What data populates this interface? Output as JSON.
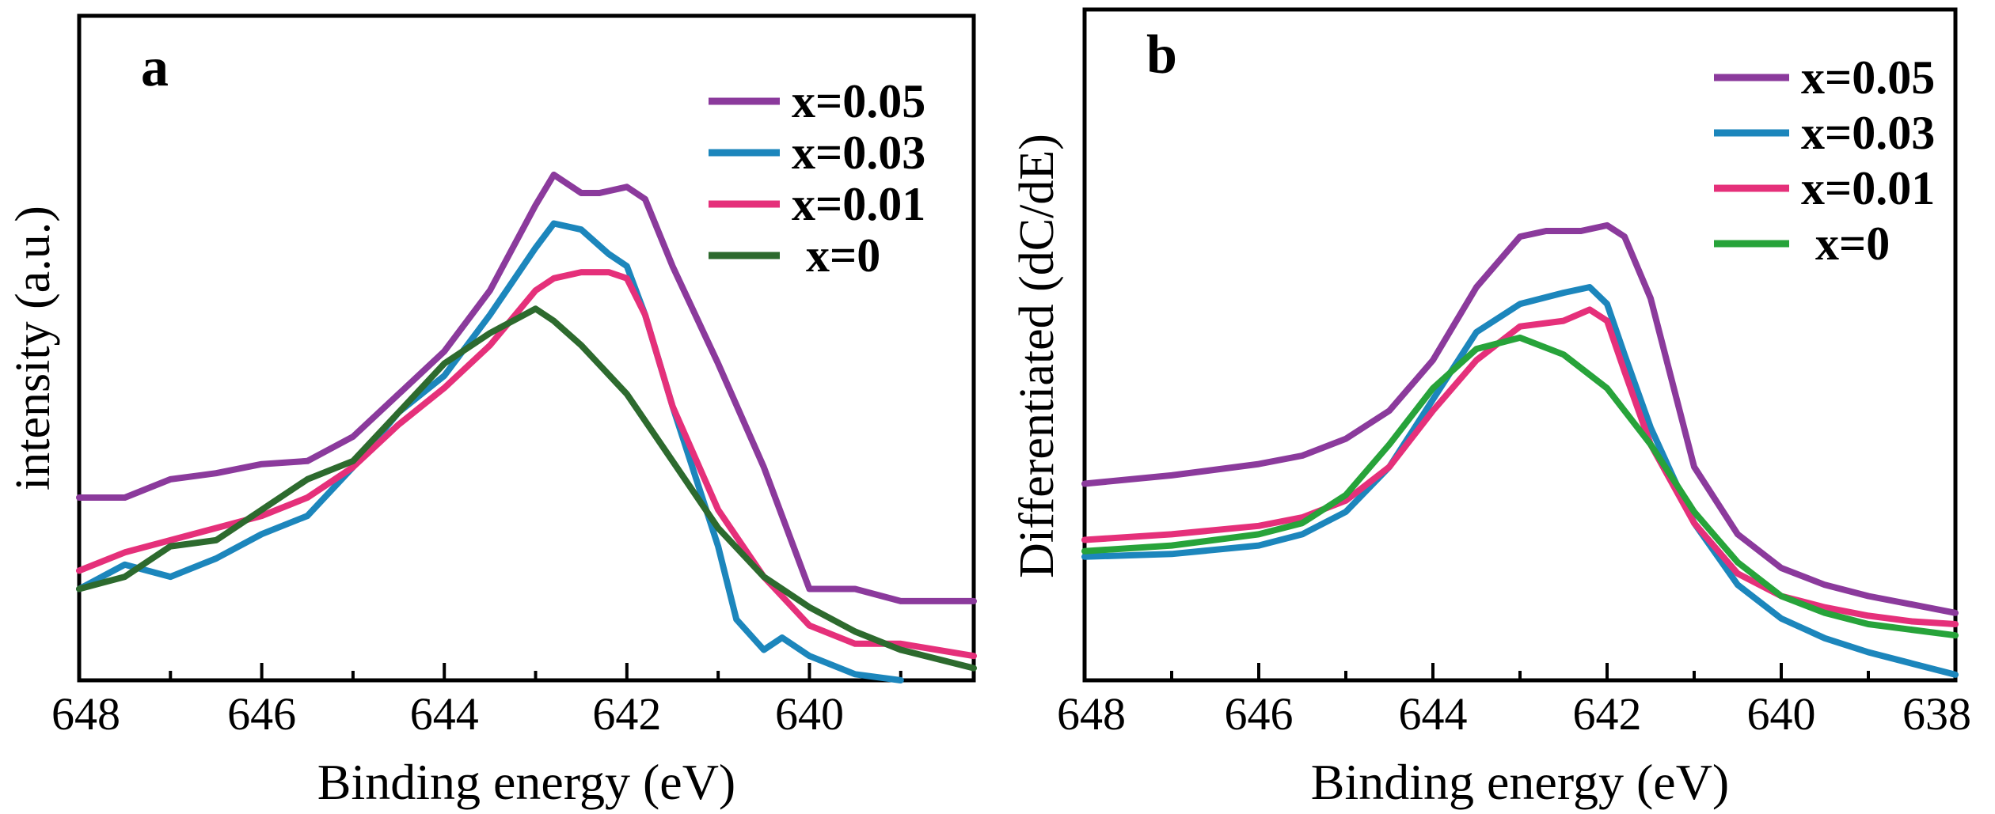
{
  "chart_data": [
    {
      "type": "line",
      "panel_label": "a",
      "xlabel": "Binding energy (eV)",
      "ylabel": "intensity (a.u.)",
      "xlim": [
        648,
        638.2
      ],
      "ylim": [
        0,
        100
      ],
      "x_ticks": [
        "648",
        "646",
        "644",
        "642",
        "640"
      ],
      "series": [
        {
          "name": "x=0.05",
          "color": "#8b3a9c",
          "x": [
            648,
            647.5,
            647,
            646.5,
            646,
            645.5,
            645,
            644.5,
            644,
            643.5,
            643,
            642.8,
            642.5,
            642.3,
            642,
            641.8,
            641.5,
            641,
            640.5,
            640,
            639.5,
            639,
            638.2
          ],
          "y": [
            30,
            30,
            33,
            34,
            35.5,
            36,
            40,
            47,
            54,
            64,
            78,
            83,
            80,
            80,
            81,
            79,
            68,
            52,
            35,
            15,
            15,
            13,
            13
          ]
        },
        {
          "name": "x=0.03",
          "color": "#1c86bc",
          "x": [
            648,
            647.5,
            647,
            646.5,
            646,
            645.5,
            645,
            644.5,
            644,
            643.5,
            643,
            642.8,
            642.5,
            642.2,
            642,
            641.8,
            641.5,
            641,
            640.8,
            640.5,
            640.3,
            640,
            639.5,
            639
          ],
          "y": [
            15,
            19,
            17,
            20,
            24,
            27,
            35,
            44,
            50,
            60,
            71,
            75,
            74,
            70,
            68,
            60,
            45,
            22,
            10,
            5,
            7,
            4,
            1,
            0
          ]
        },
        {
          "name": "x=0.01",
          "color": "#e5307a",
          "x": [
            648,
            647.5,
            647,
            646.5,
            646,
            645.5,
            645,
            644.5,
            644,
            643.5,
            643,
            642.8,
            642.5,
            642.2,
            642,
            641.8,
            641.5,
            641,
            640.5,
            640,
            639.5,
            639,
            638.2
          ],
          "y": [
            18,
            21,
            23,
            25,
            27,
            30,
            35,
            42,
            48,
            55,
            64,
            66,
            67,
            67,
            66,
            60,
            45,
            28,
            17,
            9,
            6,
            6,
            4
          ]
        },
        {
          "name": "x=0",
          "color": "#2d6a2e",
          "x": [
            648,
            647.5,
            647,
            646.5,
            646,
            645.5,
            645,
            644.5,
            644,
            643.5,
            643,
            642.8,
            642.5,
            642,
            641.5,
            641,
            640.5,
            640,
            639.5,
            639,
            638.2
          ],
          "y": [
            15,
            17,
            22,
            23,
            28,
            33,
            36,
            44,
            52,
            57,
            61,
            59,
            55,
            47,
            36,
            25,
            17,
            12,
            8,
            5,
            2
          ]
        }
      ]
    },
    {
      "type": "line",
      "panel_label": "b",
      "xlabel": "Binding energy (eV)",
      "ylabel": "Differentiated (dC/dE)",
      "xlim": [
        648,
        638
      ],
      "ylim": [
        0,
        100
      ],
      "x_ticks": [
        "648",
        "646",
        "644",
        "642",
        "640",
        "638"
      ],
      "series": [
        {
          "name": "x=0.05",
          "color": "#8b3a9c",
          "x": [
            648,
            647,
            646,
            645.5,
            645,
            644.5,
            644,
            643.5,
            643,
            642.7,
            642.3,
            642,
            641.8,
            641.5,
            641,
            640.5,
            640,
            639.5,
            639,
            638.5,
            638
          ],
          "y": [
            35,
            36.5,
            38.5,
            40,
            43,
            48,
            57,
            70,
            79,
            80,
            80,
            81,
            79,
            68,
            38,
            26,
            20,
            17,
            15,
            13.5,
            12
          ]
        },
        {
          "name": "x=0.03",
          "color": "#1c86bc",
          "x": [
            648,
            647,
            646,
            645.5,
            645,
            644.5,
            644,
            643.5,
            643,
            642.5,
            642.2,
            642,
            641.8,
            641.5,
            641,
            640.5,
            640,
            639.5,
            639,
            638.5,
            638
          ],
          "y": [
            22,
            22.5,
            24,
            26,
            30,
            38,
            50,
            62,
            67,
            69,
            70,
            67,
            58,
            45,
            28,
            17,
            11,
            7.5,
            5,
            3,
            1
          ]
        },
        {
          "name": "x=0.01",
          "color": "#e5307a",
          "x": [
            648,
            647,
            646,
            645.5,
            645,
            644.5,
            644,
            643.5,
            643,
            642.5,
            642.2,
            642,
            641.8,
            641.5,
            641,
            640.5,
            640,
            639.5,
            639,
            638.5,
            638
          ],
          "y": [
            25,
            26,
            27.5,
            29,
            32,
            38,
            48,
            57,
            63,
            64,
            66,
            64,
            55,
            42,
            28,
            19,
            15,
            13,
            11.5,
            10.5,
            10
          ]
        },
        {
          "name": "x=0",
          "color": "#27a33a",
          "x": [
            648,
            647,
            646,
            645.5,
            645,
            644.5,
            644,
            643.5,
            643,
            642.5,
            642,
            641.5,
            641,
            640.5,
            640,
            639.5,
            639,
            638.5,
            638
          ],
          "y": [
            23,
            24,
            26,
            28,
            33,
            42,
            52,
            59,
            61,
            58,
            52,
            42,
            30,
            21,
            15,
            12,
            10,
            9,
            8
          ]
        }
      ]
    }
  ]
}
